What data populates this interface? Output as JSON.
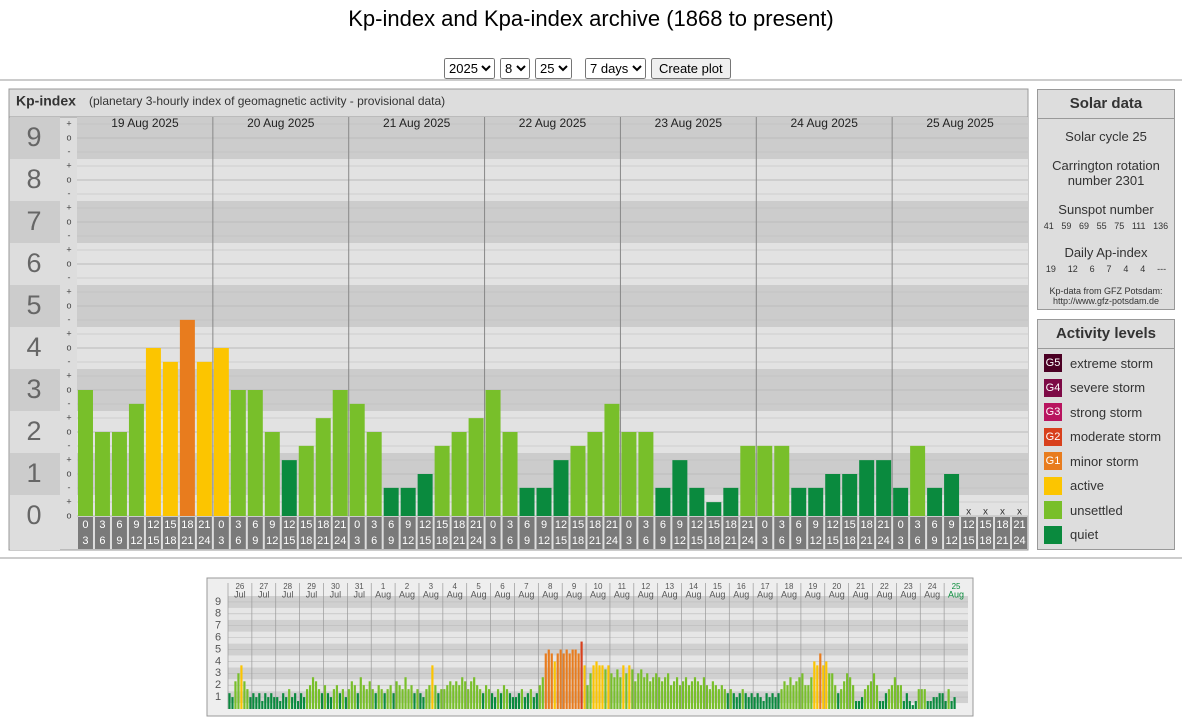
{
  "title": "Kp-index and Kpa-index archive (1868 to present)",
  "controls": {
    "year": 2025,
    "month": 8,
    "day": 25,
    "range": "7 days",
    "button": "Create plot"
  },
  "chart_data": [
    {
      "type": "bar",
      "title": "Kp-index",
      "subtitle": "(planetary 3-hourly index of geomagnetic activity - provisional data)",
      "ylim": [
        0,
        9.5
      ],
      "yticks": [
        0,
        1,
        2,
        3,
        4,
        5,
        6,
        7,
        8,
        9
      ],
      "sublabels": {
        "minus": "-",
        "zero": "o",
        "plus": "+"
      },
      "hours_start": [
        0,
        3,
        6,
        9,
        12,
        15,
        18,
        21
      ],
      "hours_end": [
        3,
        6,
        9,
        12,
        15,
        18,
        21,
        24
      ],
      "missing_label": "x",
      "days": [
        {
          "label": "19 Aug 2025",
          "values": [
            3,
            2,
            2,
            2.67,
            4,
            3.67,
            4.67,
            3.67
          ]
        },
        {
          "label": "20 Aug 2025",
          "values": [
            4,
            3,
            3,
            2,
            1.33,
            1.67,
            2.33,
            3
          ]
        },
        {
          "label": "21 Aug 2025",
          "values": [
            2.67,
            2,
            0.67,
            0.67,
            1,
            1.67,
            2,
            2.33
          ]
        },
        {
          "label": "22 Aug 2025",
          "values": [
            3,
            2,
            0.67,
            0.67,
            1.33,
            1.67,
            2,
            2.67
          ]
        },
        {
          "label": "23 Aug 2025",
          "values": [
            2,
            2,
            0.67,
            1.33,
            0.67,
            0.33,
            0.67,
            1.67
          ]
        },
        {
          "label": "24 Aug 2025",
          "values": [
            1.67,
            1.67,
            0.67,
            0.67,
            1,
            1,
            1.33,
            1.33
          ]
        },
        {
          "label": "25 Aug 2025",
          "values": [
            0.67,
            1.67,
            0.67,
            1,
            null,
            null,
            null,
            null
          ]
        }
      ]
    },
    {
      "type": "bar",
      "ylim": [
        0,
        9.5
      ],
      "yticks": [
        1,
        2,
        3,
        4,
        5,
        6,
        7,
        8,
        9
      ],
      "today_color": "#0a8c3c",
      "days": [
        {
          "day": 26,
          "month": "Jul",
          "values": [
            1.33,
            1,
            2.33,
            3,
            3.67,
            2.33,
            1.67,
            1
          ]
        },
        {
          "day": 27,
          "month": "Jul",
          "values": [
            1.33,
            1,
            1.33,
            0.67,
            1.33,
            1,
            1.33,
            1
          ]
        },
        {
          "day": 28,
          "month": "Jul",
          "values": [
            1,
            0.67,
            1.33,
            1,
            1.67,
            1,
            1.33,
            0.67
          ]
        },
        {
          "day": 29,
          "month": "Jul",
          "values": [
            1.33,
            1,
            1.67,
            2,
            2.67,
            2.33,
            1.67,
            1.33
          ]
        },
        {
          "day": 30,
          "month": "Jul",
          "values": [
            2,
            1.33,
            1,
            1.67,
            2,
            1.33,
            1.67,
            1
          ]
        },
        {
          "day": 31,
          "month": "Jul",
          "values": [
            1.67,
            2.33,
            2,
            1.33,
            2.67,
            2,
            1.67,
            2.33
          ]
        },
        {
          "day": 1,
          "month": "Aug",
          "values": [
            1.67,
            1.33,
            2,
            1.67,
            1.33,
            1.67,
            2,
            1.33
          ]
        },
        {
          "day": 2,
          "month": "Aug",
          "values": [
            2.33,
            2,
            1.67,
            2.67,
            1.67,
            2,
            1.33,
            1.67
          ]
        },
        {
          "day": 3,
          "month": "Aug",
          "values": [
            1.33,
            1,
            1.67,
            2,
            3.67,
            2,
            1.33,
            1.67
          ]
        },
        {
          "day": 4,
          "month": "Aug",
          "values": [
            1.67,
            2,
            2.33,
            2,
            2.33,
            2,
            2.67,
            2.33
          ]
        },
        {
          "day": 5,
          "month": "Aug",
          "values": [
            1.67,
            2.33,
            2.67,
            2,
            1.67,
            1.33,
            2,
            1.67
          ]
        },
        {
          "day": 6,
          "month": "Aug",
          "values": [
            1.33,
            1,
            1.67,
            1.33,
            2,
            1.67,
            1.33,
            1
          ]
        },
        {
          "day": 7,
          "month": "Aug",
          "values": [
            1,
            1.33,
            1.67,
            1,
            1.33,
            1.67,
            1,
            1.33
          ]
        },
        {
          "day": 8,
          "month": "Aug",
          "values": [
            2,
            2.67,
            4.67,
            5,
            4.67,
            4,
            4.67,
            5
          ]
        },
        {
          "day": 9,
          "month": "Aug",
          "values": [
            4.67,
            5,
            4.67,
            5,
            5,
            4.67,
            5.67,
            3.67
          ]
        },
        {
          "day": 10,
          "month": "Aug",
          "values": [
            2,
            3,
            3.67,
            4,
            3.67,
            3.67,
            3.33,
            3.67
          ]
        },
        {
          "day": 11,
          "month": "Aug",
          "values": [
            3,
            2.67,
            3.33,
            2.67,
            3.67,
            3,
            3.67,
            3.33
          ]
        },
        {
          "day": 12,
          "month": "Aug",
          "values": [
            2.33,
            3,
            3.33,
            2.67,
            3,
            2.33,
            2.67,
            3
          ]
        },
        {
          "day": 13,
          "month": "Aug",
          "values": [
            2.67,
            2.33,
            2.67,
            3,
            2,
            2.33,
            2.67,
            2
          ]
        },
        {
          "day": 14,
          "month": "Aug",
          "values": [
            2.33,
            2.67,
            2,
            2.33,
            2.67,
            2.33,
            2,
            2.67
          ]
        },
        {
          "day": 15,
          "month": "Aug",
          "values": [
            2,
            1.67,
            2.33,
            2,
            1.67,
            2,
            1.67,
            1.33
          ]
        },
        {
          "day": 16,
          "month": "Aug",
          "values": [
            1.67,
            1.33,
            1,
            1.33,
            1.67,
            1.33,
            1,
            1.33
          ]
        },
        {
          "day": 17,
          "month": "Aug",
          "values": [
            1,
            1.33,
            1,
            0.67,
            1.33,
            1,
            1.33,
            1
          ]
        },
        {
          "day": 18,
          "month": "Aug",
          "values": [
            1.33,
            1.67,
            2.33,
            2,
            2.67,
            2,
            2.33,
            2.67
          ]
        },
        {
          "day": 19,
          "month": "Aug",
          "values": [
            3,
            2,
            2,
            2.67,
            4,
            3.67,
            4.67,
            3.67
          ]
        },
        {
          "day": 20,
          "month": "Aug",
          "values": [
            4,
            3,
            3,
            2,
            1.33,
            1.67,
            2.33,
            3
          ]
        },
        {
          "day": 21,
          "month": "Aug",
          "values": [
            2.67,
            2,
            0.67,
            0.67,
            1,
            1.67,
            2,
            2.33
          ]
        },
        {
          "day": 22,
          "month": "Aug",
          "values": [
            3,
            2,
            0.67,
            0.67,
            1.33,
            1.67,
            2,
            2.67
          ]
        },
        {
          "day": 23,
          "month": "Aug",
          "values": [
            2,
            2,
            0.67,
            1.33,
            0.67,
            0.33,
            0.67,
            1.67
          ]
        },
        {
          "day": 24,
          "month": "Aug",
          "values": [
            1.67,
            1.67,
            0.67,
            0.67,
            1,
            1,
            1.33,
            1.33
          ]
        },
        {
          "day": 25,
          "month": "Aug",
          "values": [
            0.67,
            1.67,
            0.67,
            1,
            null,
            null,
            null,
            null
          ]
        }
      ]
    }
  ],
  "solar_data": {
    "title": "Solar data",
    "cycle": "Solar cycle 25",
    "carrington": "Carrington rotation number 2301",
    "sunspot_title": "Sunspot number",
    "sunspot": [
      41,
      59,
      69,
      55,
      75,
      111,
      136
    ],
    "ap_title": "Daily Ap-index",
    "ap": [
      19,
      12,
      6,
      7,
      4,
      4,
      "---"
    ],
    "source": "Kp-data from GFZ Potsdam:",
    "url": "http://www.gfz-potsdam.de"
  },
  "activity_levels": {
    "title": "Activity levels",
    "levels": [
      {
        "code": "G5",
        "name": "extreme storm",
        "color": "#4b0024"
      },
      {
        "code": "G4",
        "name": "severe storm",
        "color": "#7d0a46"
      },
      {
        "code": "G3",
        "name": "strong storm",
        "color": "#b8145f"
      },
      {
        "code": "G2",
        "name": "moderate storm",
        "color": "#d8401c"
      },
      {
        "code": "G1",
        "name": "minor storm",
        "color": "#e87c1e"
      },
      {
        "name": "active",
        "color": "#fcc500"
      },
      {
        "name": "unsettled",
        "color": "#78bf2a"
      },
      {
        "name": "quiet",
        "color": "#0a8a3e"
      }
    ]
  }
}
